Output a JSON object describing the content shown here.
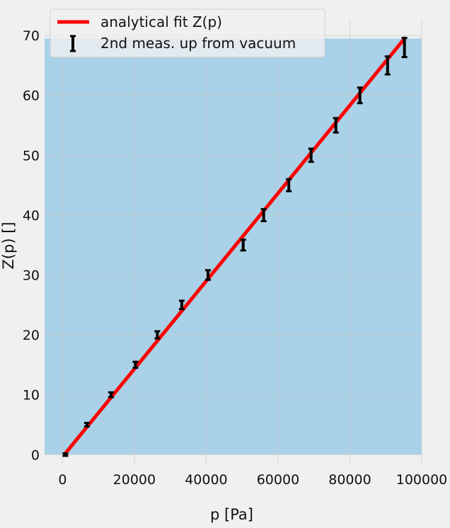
{
  "chart_data": {
    "type": "scatter",
    "title": "",
    "xlabel": "p [Pa]",
    "ylabel": "Z(p) []",
    "xlim": [
      -5000,
      100000
    ],
    "ylim": [
      -1.5,
      72.5
    ],
    "xticks": [
      0,
      20000,
      40000,
      60000,
      80000,
      100000
    ],
    "xtick_labels": [
      "0",
      "20000",
      "40000",
      "60000",
      "80000",
      "100000"
    ],
    "yticks": [
      0,
      10,
      20,
      30,
      40,
      50,
      60,
      70
    ],
    "ytick_labels": [
      "0",
      "10",
      "20",
      "30",
      "40",
      "50",
      "60",
      "70"
    ],
    "grid": true,
    "legend_position": "top-left",
    "shaded_region": {
      "x": [
        -5000,
        100000
      ],
      "y": [
        0,
        69.5
      ],
      "color": "#a9d1e8"
    },
    "series": [
      {
        "name": "analytical fit Z(p)",
        "type": "line",
        "color": "#ff0000",
        "x": [
          500,
          95500
        ],
        "y": [
          0,
          69.7
        ]
      },
      {
        "name": "2nd meas. up from vacuum",
        "type": "errorbar",
        "color": "#000000",
        "x": [
          800,
          6800,
          13500,
          20300,
          26400,
          33200,
          40500,
          50300,
          56000,
          63000,
          69200,
          76100,
          82800,
          90500,
          95200
        ],
        "y": [
          0,
          5,
          10,
          15,
          20,
          25,
          30,
          35,
          40,
          45,
          50,
          55,
          60,
          65,
          68
        ],
        "yerr": [
          0.2,
          0.3,
          0.4,
          0.5,
          0.6,
          0.7,
          0.8,
          0.9,
          1.0,
          1.0,
          1.1,
          1.2,
          1.3,
          1.5,
          1.6
        ]
      }
    ]
  }
}
